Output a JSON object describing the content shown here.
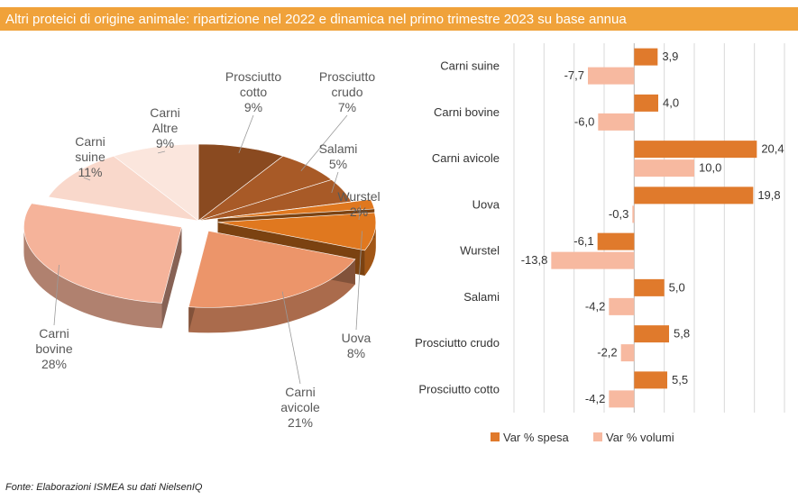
{
  "title": "Altri proteici di origine animale: ripartizione nel 2022 e dinamica nel primo trimestre 2023 su base annua",
  "source": "Fonte: Elaborazioni ISMEA su dati NielsenIQ",
  "colors": {
    "title_bg": "#f0a23a",
    "spesa": "#e07a2c",
    "volumi": "#f7b9a0",
    "pie_light": "#f5b39a",
    "pie_lightest": "#f9d8cb",
    "pie_dark": "#8a4a20",
    "pie_mid": "#a85a27",
    "pie_orange": "#e0781f"
  },
  "chart_data": [
    {
      "type": "pie",
      "slices": [
        {
          "name": "Prosciutto cotto",
          "value": 9,
          "label": "9%"
        },
        {
          "name": "Prosciutto crudo",
          "value": 7,
          "label": "7%"
        },
        {
          "name": "Salami",
          "value": 5,
          "label": "5%"
        },
        {
          "name": "Wurstel",
          "value": 2,
          "label": "2%"
        },
        {
          "name": "Uova",
          "value": 8,
          "label": "8%"
        },
        {
          "name": "Carni avicole",
          "value": 21,
          "label": "21%"
        },
        {
          "name": "Carni bovine",
          "value": 28,
          "label": "28%"
        },
        {
          "name": "Carni suine",
          "value": 11,
          "label": "11%"
        },
        {
          "name": "Carni Altre",
          "value": 9,
          "label": "9%"
        }
      ]
    },
    {
      "type": "bar",
      "orientation": "horizontal",
      "categories": [
        "Carni suine",
        "Carni bovine",
        "Carni avicole",
        "Uova",
        "Wurstel",
        "Salami",
        "Prosciutto crudo",
        "Prosciutto cotto"
      ],
      "series": [
        {
          "name": "Var % spesa",
          "values": [
            3.9,
            4.0,
            20.4,
            19.8,
            -6.1,
            5.0,
            5.8,
            5.5
          ],
          "labels": [
            "3,9",
            "4,0",
            "20,4",
            "19,8",
            "-6,1",
            "5,0",
            "5,8",
            "5,5"
          ]
        },
        {
          "name": "Var % volumi",
          "values": [
            -7.7,
            -6.0,
            10.0,
            -0.3,
            -13.8,
            -4.2,
            -2.2,
            -4.2
          ],
          "labels": [
            "-7,7",
            "-6,0",
            "10,0",
            "-0,3",
            "-13,8",
            "-4,2",
            "-2,2",
            "-4,2"
          ]
        }
      ],
      "xlim": [
        -20,
        25
      ],
      "grid": true,
      "legend": "bottom"
    }
  ]
}
